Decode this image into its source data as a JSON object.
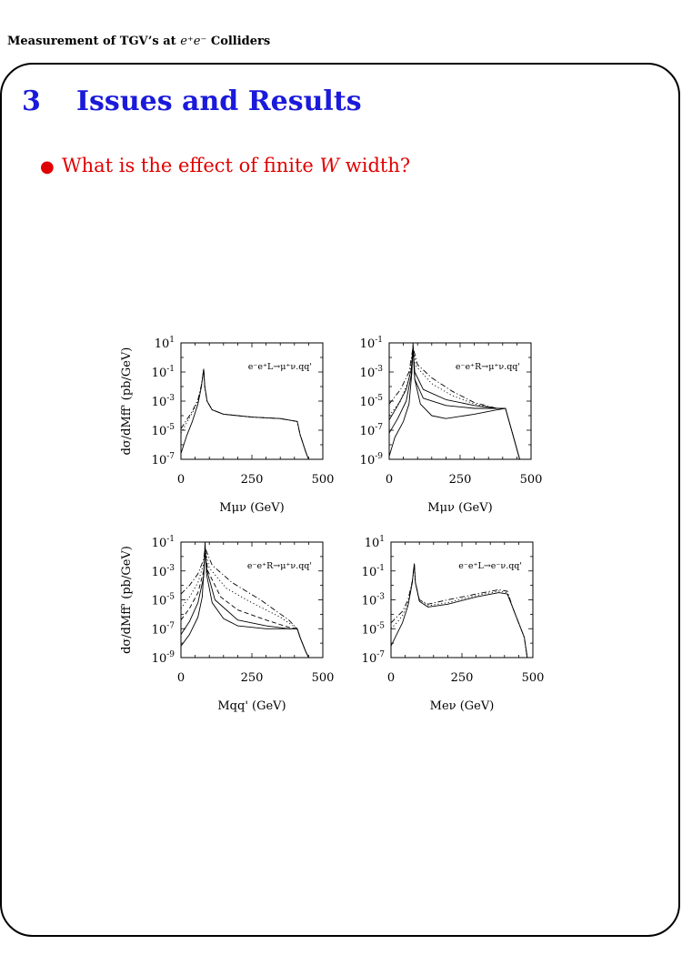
{
  "header": {
    "text": "Measurement of TGV’s at ",
    "math": "e⁺e⁻",
    "suffix": " Colliders"
  },
  "section": {
    "number": "3",
    "title": "Issues and Results"
  },
  "bullet": {
    "pre": "What is the effect of finite ",
    "var": "W",
    "post": " width?"
  },
  "colors": {
    "title": "#1a1adb",
    "bullet": "#e00000",
    "frame": "#000000"
  },
  "chart_data": [
    {
      "type": "line",
      "title": "e⁻e⁺L→μ⁺ν.qq'",
      "xlabel": "Mμν (GeV)",
      "ylabel": "dσ/dMff' (pb/GeV)",
      "xlim": [
        0,
        500
      ],
      "y_log": true,
      "ylim_exp": [
        -7,
        1
      ],
      "x_ticks": [
        "0",
        "250",
        "500"
      ],
      "y_ticks": [
        "10¹",
        "10⁻¹",
        "10⁻³",
        "10⁻⁵",
        "10⁻⁷"
      ],
      "series": [
        {
          "style": "solid",
          "points": [
            [
              0,
              -6.6
            ],
            [
              20,
              -5.4
            ],
            [
              40,
              -4.4
            ],
            [
              60,
              -3.2
            ],
            [
              72,
              -2
            ],
            [
              80,
              -0.8
            ],
            [
              84,
              -2
            ],
            [
              92,
              -3
            ],
            [
              110,
              -3.6
            ],
            [
              150,
              -3.9
            ],
            [
              250,
              -4.1
            ],
            [
              350,
              -4.2
            ],
            [
              410,
              -4.4
            ],
            [
              420,
              -5.3
            ],
            [
              440,
              -6.5
            ],
            [
              450,
              -7
            ]
          ]
        },
        {
          "style": "dotted",
          "points": [
            [
              0,
              -5.2
            ],
            [
              20,
              -4.5
            ],
            [
              40,
              -3.8
            ],
            [
              60,
              -3
            ],
            [
              72,
              -1.9
            ],
            [
              80,
              -0.8
            ],
            [
              84,
              -2
            ],
            [
              92,
              -3
            ],
            [
              110,
              -3.6
            ],
            [
              150,
              -3.9
            ],
            [
              250,
              -4.1
            ],
            [
              350,
              -4.2
            ],
            [
              410,
              -4.4
            ],
            [
              420,
              -5.3
            ],
            [
              440,
              -6.5
            ],
            [
              450,
              -7
            ]
          ]
        },
        {
          "style": "dashdot",
          "points": [
            [
              0,
              -4.9
            ],
            [
              20,
              -4.3
            ],
            [
              40,
              -3.7
            ],
            [
              60,
              -2.9
            ],
            [
              72,
              -1.9
            ],
            [
              80,
              -0.8
            ],
            [
              84,
              -2
            ],
            [
              92,
              -3
            ],
            [
              110,
              -3.6
            ],
            [
              150,
              -3.9
            ],
            [
              250,
              -4.1
            ],
            [
              350,
              -4.2
            ],
            [
              410,
              -4.4
            ],
            [
              420,
              -5.3
            ],
            [
              440,
              -6.5
            ],
            [
              450,
              -7
            ]
          ]
        }
      ]
    },
    {
      "type": "line",
      "title": "e⁻e⁺R→μ⁺ν.qq'",
      "xlabel": "Mμν (GeV)",
      "ylabel": "",
      "xlim": [
        0,
        500
      ],
      "y_log": true,
      "ylim_exp": [
        -9,
        -1
      ],
      "x_ticks": [
        "0",
        "250",
        "500"
      ],
      "y_ticks": [
        "10⁻¹",
        "10⁻³",
        "10⁻⁵",
        "10⁻⁷",
        "10⁻⁹"
      ],
      "series": [
        {
          "style": "solid",
          "points": [
            [
              0,
              -8.8
            ],
            [
              20,
              -7.5
            ],
            [
              50,
              -6.4
            ],
            [
              70,
              -5.2
            ],
            [
              80,
              -3
            ],
            [
              84,
              -1
            ],
            [
              90,
              -3.5
            ],
            [
              110,
              -5.2
            ],
            [
              150,
              -6
            ],
            [
              200,
              -6.2
            ],
            [
              300,
              -5.9
            ],
            [
              380,
              -5.6
            ],
            [
              410,
              -5.5
            ],
            [
              420,
              -6.2
            ],
            [
              440,
              -7.6
            ],
            [
              460,
              -9
            ]
          ]
        },
        {
          "style": "solid",
          "points": [
            [
              0,
              -7.2
            ],
            [
              30,
              -6.2
            ],
            [
              60,
              -5
            ],
            [
              78,
              -3.2
            ],
            [
              84,
              -1.5
            ],
            [
              90,
              -3.5
            ],
            [
              120,
              -4.8
            ],
            [
              200,
              -5.3
            ],
            [
              300,
              -5.5
            ],
            [
              380,
              -5.5
            ],
            [
              410,
              -5.5
            ],
            [
              420,
              -6.2
            ],
            [
              440,
              -7.6
            ],
            [
              460,
              -9
            ]
          ]
        },
        {
          "style": "solid",
          "points": [
            [
              0,
              -6.3
            ],
            [
              30,
              -5.3
            ],
            [
              60,
              -4.2
            ],
            [
              78,
              -2.8
            ],
            [
              84,
              -1.4
            ],
            [
              90,
              -3
            ],
            [
              120,
              -4.2
            ],
            [
              200,
              -4.9
            ],
            [
              300,
              -5.3
            ],
            [
              380,
              -5.5
            ],
            [
              410,
              -5.5
            ]
          ]
        },
        {
          "style": "dotted",
          "points": [
            [
              0,
              -6
            ],
            [
              40,
              -5
            ],
            [
              70,
              -3.5
            ],
            [
              84,
              -1.4
            ],
            [
              95,
              -2.6
            ],
            [
              150,
              -3.8
            ],
            [
              220,
              -4.6
            ],
            [
              300,
              -5.2
            ],
            [
              380,
              -5.5
            ],
            [
              410,
              -5.5
            ]
          ]
        },
        {
          "style": "dashdot",
          "points": [
            [
              0,
              -5.2
            ],
            [
              40,
              -4.2
            ],
            [
              70,
              -3
            ],
            [
              84,
              -1.3
            ],
            [
              100,
              -2.5
            ],
            [
              150,
              -3.4
            ],
            [
              220,
              -4.3
            ],
            [
              300,
              -5.1
            ],
            [
              380,
              -5.5
            ],
            [
              410,
              -5.5
            ]
          ]
        }
      ]
    },
    {
      "type": "line",
      "title": "e⁻e⁺R→μ⁺ν.qq'",
      "xlabel": "Mqq' (GeV)",
      "ylabel": "dσ/dMff' (pb/GeV)",
      "xlim": [
        0,
        500
      ],
      "y_log": true,
      "ylim_exp": [
        -9,
        -1
      ],
      "x_ticks": [
        "0",
        "250",
        "500"
      ],
      "y_ticks": [
        "10⁻¹",
        "10⁻³",
        "10⁻⁵",
        "10⁻⁷",
        "10⁻⁹"
      ],
      "series": [
        {
          "style": "solid",
          "points": [
            [
              0,
              -8.2
            ],
            [
              30,
              -7.4
            ],
            [
              60,
              -6.2
            ],
            [
              75,
              -4.8
            ],
            [
              82,
              -2.5
            ],
            [
              85,
              -1
            ],
            [
              90,
              -3.2
            ],
            [
              110,
              -5.2
            ],
            [
              150,
              -6.3
            ],
            [
              200,
              -6.8
            ],
            [
              300,
              -7
            ],
            [
              380,
              -7
            ],
            [
              410,
              -7
            ],
            [
              420,
              -7.6
            ],
            [
              440,
              -8.6
            ],
            [
              450,
              -9
            ]
          ]
        },
        {
          "style": "solid",
          "points": [
            [
              0,
              -7.4
            ],
            [
              30,
              -6.5
            ],
            [
              60,
              -5.2
            ],
            [
              80,
              -3.4
            ],
            [
              85,
              -1.6
            ],
            [
              92,
              -3
            ],
            [
              120,
              -5
            ],
            [
              200,
              -6.4
            ],
            [
              300,
              -6.8
            ],
            [
              380,
              -7
            ],
            [
              410,
              -7
            ],
            [
              420,
              -7.6
            ],
            [
              440,
              -8.6
            ],
            [
              450,
              -9
            ]
          ]
        },
        {
          "style": "dashed",
          "points": [
            [
              0,
              -6.4
            ],
            [
              30,
              -5.6
            ],
            [
              60,
              -4.5
            ],
            [
              80,
              -3
            ],
            [
              85,
              -1.6
            ],
            [
              95,
              -3
            ],
            [
              140,
              -4.8
            ],
            [
              200,
              -5.7
            ],
            [
              300,
              -6.4
            ],
            [
              380,
              -6.9
            ],
            [
              410,
              -7
            ]
          ]
        },
        {
          "style": "dotted",
          "points": [
            [
              0,
              -5.6
            ],
            [
              30,
              -4.8
            ],
            [
              60,
              -3.8
            ],
            [
              80,
              -2.5
            ],
            [
              85,
              -1.5
            ],
            [
              100,
              -2.8
            ],
            [
              160,
              -4.2
            ],
            [
              250,
              -5.2
            ],
            [
              350,
              -6.2
            ],
            [
              410,
              -7
            ]
          ]
        },
        {
          "style": "dashdot",
          "points": [
            [
              0,
              -4.6
            ],
            [
              30,
              -4
            ],
            [
              60,
              -3.2
            ],
            [
              80,
              -2.2
            ],
            [
              85,
              -1.4
            ],
            [
              110,
              -2.6
            ],
            [
              180,
              -3.8
            ],
            [
              280,
              -5
            ],
            [
              380,
              -6.4
            ],
            [
              410,
              -7
            ]
          ]
        }
      ]
    },
    {
      "type": "line",
      "title": "e⁻e⁺L→e⁻ν.qq'",
      "xlabel": "Meν (GeV)",
      "ylabel": "",
      "xlim": [
        0,
        500
      ],
      "y_log": true,
      "ylim_exp": [
        -7,
        1
      ],
      "x_ticks": [
        "0",
        "250",
        "500"
      ],
      "y_ticks": [
        "10¹",
        "10⁻¹",
        "10⁻³",
        "10⁻⁵",
        "10⁻⁷"
      ],
      "series": [
        {
          "style": "solid",
          "points": [
            [
              0,
              -6.2
            ],
            [
              20,
              -5.4
            ],
            [
              40,
              -4.6
            ],
            [
              60,
              -3.4
            ],
            [
              75,
              -1.8
            ],
            [
              82,
              -0.5
            ],
            [
              86,
              -1.8
            ],
            [
              100,
              -3.1
            ],
            [
              130,
              -3.5
            ],
            [
              200,
              -3.3
            ],
            [
              300,
              -2.8
            ],
            [
              380,
              -2.5
            ],
            [
              410,
              -2.6
            ],
            [
              430,
              -3.6
            ],
            [
              450,
              -4.6
            ],
            [
              470,
              -5.6
            ],
            [
              480,
              -7
            ]
          ]
        },
        {
          "style": "dotted",
          "points": [
            [
              0,
              -5
            ],
            [
              20,
              -4.6
            ],
            [
              40,
              -4.1
            ],
            [
              60,
              -3.2
            ],
            [
              75,
              -1.8
            ],
            [
              82,
              -0.5
            ],
            [
              86,
              -1.8
            ],
            [
              100,
              -3
            ],
            [
              130,
              -3.4
            ],
            [
              200,
              -3.2
            ],
            [
              300,
              -2.7
            ],
            [
              380,
              -2.4
            ],
            [
              410,
              -2.5
            ],
            [
              430,
              -3.6
            ],
            [
              450,
              -4.6
            ],
            [
              470,
              -5.6
            ],
            [
              480,
              -7
            ]
          ]
        },
        {
          "style": "dashdot",
          "points": [
            [
              0,
              -4.6
            ],
            [
              20,
              -4.2
            ],
            [
              40,
              -3.8
            ],
            [
              60,
              -3
            ],
            [
              75,
              -1.7
            ],
            [
              82,
              -0.5
            ],
            [
              86,
              -1.8
            ],
            [
              100,
              -3
            ],
            [
              130,
              -3.3
            ],
            [
              200,
              -3
            ],
            [
              300,
              -2.6
            ],
            [
              380,
              -2.3
            ],
            [
              410,
              -2.4
            ],
            [
              430,
              -3.6
            ],
            [
              450,
              -4.6
            ],
            [
              470,
              -5.6
            ],
            [
              480,
              -7
            ]
          ]
        }
      ]
    }
  ]
}
